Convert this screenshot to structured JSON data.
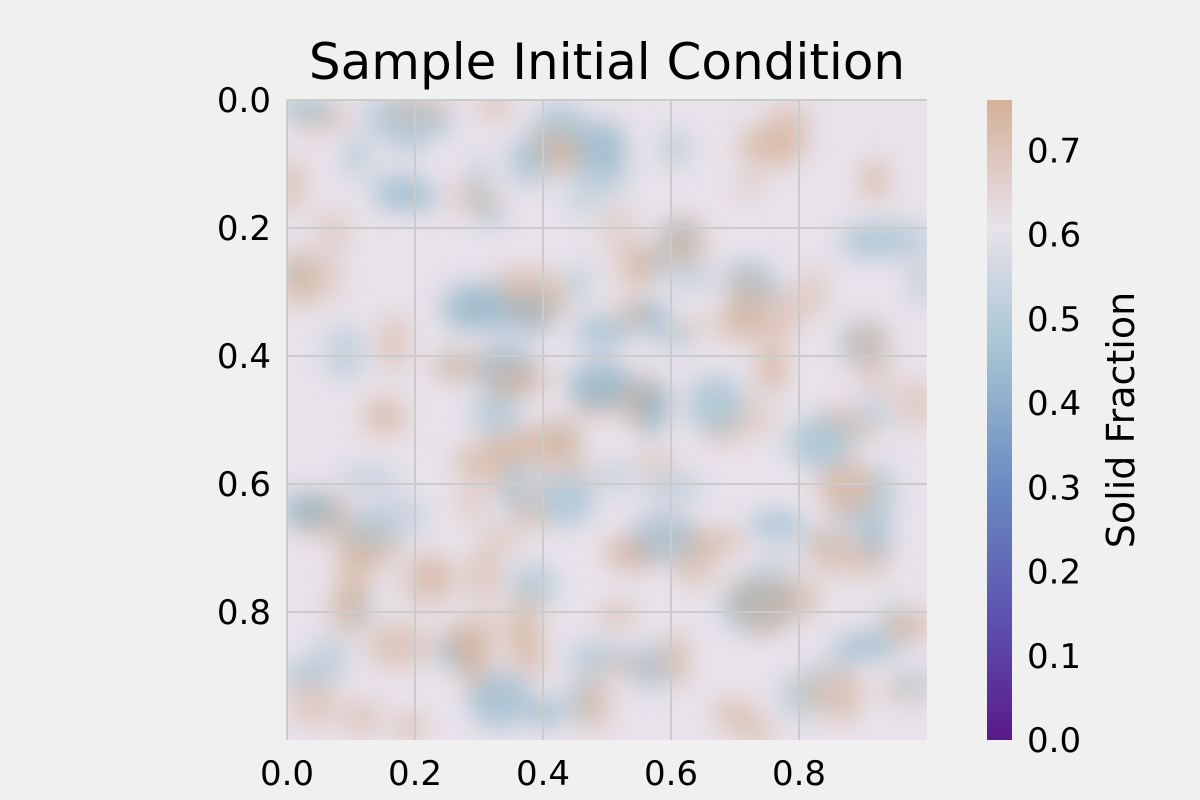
{
  "chart_data": {
    "type": "heatmap",
    "title": "Sample Initial Condition",
    "xlabel": "",
    "ylabel": "",
    "xlim": [
      0.0,
      1.0
    ],
    "ylim": [
      0.0,
      1.0
    ],
    "y_inverted": true,
    "x_ticks": [
      "0.0",
      "0.2",
      "0.4",
      "0.6",
      "0.8"
    ],
    "y_ticks": [
      "0.0",
      "0.2",
      "0.4",
      "0.6",
      "0.8"
    ],
    "grid": true,
    "field_description": "random smooth field, values roughly 0.45 to 0.75, mean about 0.62",
    "colorbar": {
      "label": "Solid Fraction",
      "vmin": 0.0,
      "vmax": 0.76,
      "ticks": [
        "0.0",
        "0.1",
        "0.2",
        "0.3",
        "0.4",
        "0.5",
        "0.6",
        "0.7"
      ],
      "colormap": "twilight",
      "colors": [
        "#5a1a87",
        "#5d55b0",
        "#6a8cc2",
        "#a3c2d2",
        "#e8e2ea",
        "#d4b198"
      ]
    }
  }
}
